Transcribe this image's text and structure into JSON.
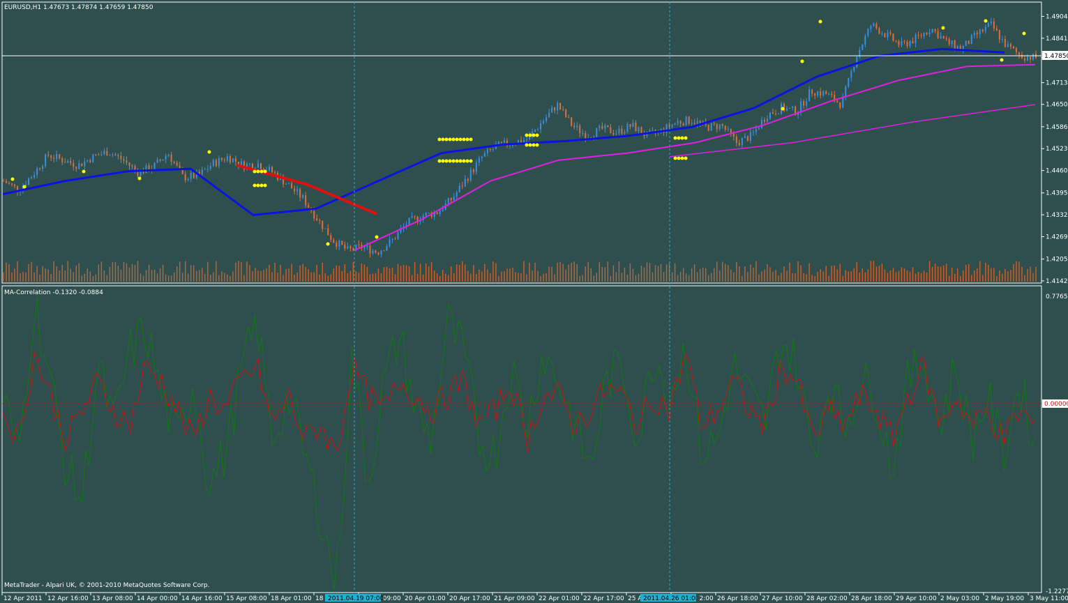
{
  "window": {
    "symbol_title": "EURUSD,H1  1.47673 1.47874 1.47659 1.47850",
    "indicator_title": "MA-Correlation -0.1320 -0.0884",
    "copyright": "MetaTrader - Alpari UK, © 2001-2010 MetaQuotes Software Corp.",
    "current_price_tag": "1.47850",
    "zero_tag": "0.00000",
    "vline_tags": [
      "2011.04.19 07:00",
      "2011.04.26 01:00"
    ]
  },
  "colors": {
    "background": "#2f4f4f",
    "bull_candle": "#3a8fe0",
    "bear_candle": "#e0703a",
    "ma_blue": "#0a14e0",
    "ma_magenta": "#e020e0",
    "ma_red": "#e01010",
    "dots": "#ffff00",
    "corr_green": "#0f7a0f",
    "corr_red": "#d01010",
    "volume": "#d0602a",
    "grid_vline": "#20b0d0"
  },
  "chart_data": [
    {
      "type": "candlestick",
      "title": "EURUSD,H1  1.47673 1.47874 1.47659 1.47850",
      "ylim": [
        1.414,
        1.4935
      ],
      "y_ticks": [
        "1.49040",
        "1.48410",
        "1.47850",
        "1.47130",
        "1.46505",
        "1.45860",
        "1.45230",
        "1.44600",
        "1.43955",
        "1.43325",
        "1.42695",
        "1.42050",
        "1.41420"
      ],
      "x_ticks": [
        "12 Apr 2011",
        "12 Apr 16:00",
        "13 Apr 08:00",
        "14 Apr 00:00",
        "14 Apr 16:00",
        "15 Apr 08:00",
        "18 Apr 01:00",
        "18 A",
        "19 Apr 09:00",
        "20 Apr 01:00",
        "20 Apr 17:00",
        "21 Apr 09:00",
        "22 Apr 01:00",
        "22 Apr 17:00",
        "25 A",
        "26 Apr 02:00",
        "26 Apr 18:00",
        "27 Apr 10:00",
        "28 Apr 02:00",
        "28 Apr 18:00",
        "29 Apr 10:00",
        "2 May 03:00",
        "2 May 19:00",
        "3 May 11:00"
      ],
      "close_path": [
        1.443,
        1.4405,
        1.445,
        1.4505,
        1.449,
        1.4475,
        1.45,
        1.4515,
        1.449,
        1.4455,
        1.447,
        1.451,
        1.444,
        1.4445,
        1.448,
        1.45,
        1.4475,
        1.448,
        1.4455,
        1.442,
        1.438,
        1.432,
        1.426,
        1.423,
        1.424,
        1.4225,
        1.426,
        1.431,
        1.433,
        1.434,
        1.438,
        1.444,
        1.45,
        1.453,
        1.454,
        1.455,
        1.46,
        1.465,
        1.459,
        1.456,
        1.458,
        1.457,
        1.459,
        1.456,
        1.4575,
        1.46,
        1.4605,
        1.4585,
        1.459,
        1.454,
        1.456,
        1.462,
        1.464,
        1.463,
        1.469,
        1.468,
        1.465,
        1.479,
        1.488,
        1.485,
        1.482,
        1.484,
        1.487,
        1.483,
        1.481,
        1.485,
        1.488,
        1.482,
        1.479,
        1.4785
      ],
      "ma_blue": [
        1.4392,
        1.443,
        1.4458,
        1.4465,
        1.4332,
        1.435,
        1.443,
        1.451,
        1.4535,
        1.4545,
        1.456,
        1.4585,
        1.464,
        1.473,
        1.479,
        1.481,
        1.48
      ],
      "ma_magenta_fast": [
        1.423,
        1.432,
        1.443,
        1.449,
        1.451,
        1.454,
        1.459,
        1.466,
        1.472,
        1.476,
        1.4765
      ],
      "ma_magenta_slow": [
        1.45,
        1.454,
        1.46,
        1.465
      ],
      "ma_red": [
        1.4475,
        1.442,
        1.4335
      ]
    },
    {
      "type": "line",
      "title": "MA-Correlation -0.1320 -0.0884",
      "ylim": [
        -1.2277,
        0.7765
      ],
      "y_ticks": [
        "0.7765",
        "0.00000",
        "-1.2277"
      ],
      "series": [
        {
          "values": [
            0.1,
            -0.3,
            0.75,
            0.2,
            -0.4,
            -0.6,
            0.3,
            -0.1,
            0.4,
            0.55,
            0.1,
            -0.2,
            0.2,
            -0.5,
            -0.3,
            0.25,
            0.6,
            -0.2,
            0.1,
            -0.3,
            -0.7,
            -1.2,
            0.4,
            -0.5,
            0.2,
            0.5,
            0.0,
            -0.2,
            0.6,
            0.4,
            -0.2,
            -0.3,
            0.3,
            -0.1,
            0.4,
            0.2,
            -0.1,
            -0.4,
            0.2,
            0.3,
            -0.2,
            0.4,
            0.1,
            0.45,
            -0.3,
            -0.2,
            0.3,
            0.1,
            -0.1,
            0.5,
            0.3,
            -0.3,
            0.2,
            -0.1,
            0.2,
            0.1,
            -0.4,
            0.2,
            0.35,
            -0.1,
            0.3,
            -0.2,
            0.1,
            -0.3,
            0.2,
            -0.25
          ]
        },
        {
          "values": [
            0.0,
            -0.2,
            0.4,
            0.1,
            -0.2,
            0.0,
            0.2,
            0.0,
            -0.1,
            0.3,
            0.2,
            0.0,
            -0.2,
            0.1,
            0.0,
            0.2,
            0.3,
            -0.1,
            0.1,
            -0.2,
            -0.1,
            -0.3,
            0.3,
            0.1,
            0.0,
            0.2,
            0.1,
            0.0,
            0.1,
            0.2,
            -0.1,
            0.0,
            0.2,
            -0.2,
            0.1,
            0.1,
            -0.1,
            0.0,
            0.15,
            0.1,
            -0.1,
            0.1,
            0.0,
            0.4,
            -0.1,
            0.0,
            0.2,
            0.0,
            -0.1,
            0.3,
            0.2,
            -0.2,
            0.0,
            -0.1,
            0.1,
            0.0,
            -0.2,
            0.1,
            0.3,
            -0.1,
            0.1,
            -0.1,
            0.0,
            -0.2,
            0.0,
            -0.1
          ]
        }
      ]
    }
  ]
}
